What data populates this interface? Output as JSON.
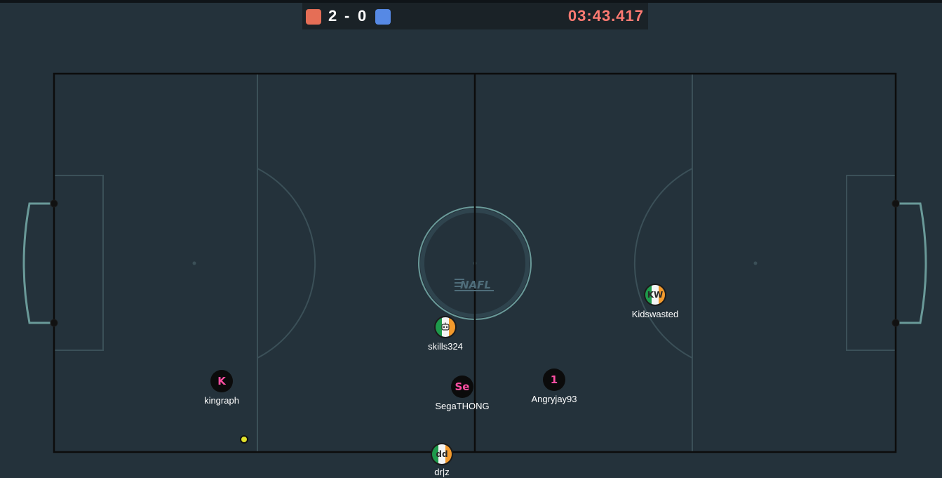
{
  "scoreboard": {
    "red_team_color": "#e56e56",
    "blue_team_color": "#5689e5",
    "red_score": "2",
    "separator": "-",
    "blue_score": "0",
    "timer": "03:43.417",
    "timer_color": "#ff7a72"
  },
  "field": {
    "background": "#24323b",
    "line_color": "#3b5058",
    "border_color": "#0c0c0c",
    "goal_color": "#6a9a99",
    "center_logo": "NAFL"
  },
  "ball": {
    "color": "#e1e12a"
  },
  "players": [
    {
      "name": "kingraph",
      "avatar": "K",
      "team": "red",
      "style": "dark",
      "avatar_color": "#ff4fa3"
    },
    {
      "name": "SegaTHONG",
      "avatar": "Se",
      "team": "red",
      "style": "dark",
      "avatar_color": "#ff4fa3"
    },
    {
      "name": "Angryjay93",
      "avatar": "1",
      "team": "red",
      "style": "dark",
      "avatar_color": "#ff4fa3"
    },
    {
      "name": "skills324",
      "avatar": "robot-icon",
      "team": "blue",
      "style": "ireland-flag"
    },
    {
      "name": "Kidswasted",
      "avatar": "KW",
      "team": "blue",
      "style": "ireland-flag"
    },
    {
      "name": "dr|z",
      "avatar": "dd",
      "team": "blue",
      "style": "ireland-flag"
    }
  ]
}
